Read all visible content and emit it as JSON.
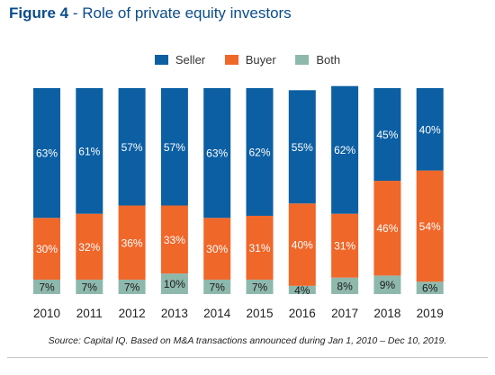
{
  "header": {
    "figure_label": "Figure 4",
    "separator": " - ",
    "title": "Role of private equity investors"
  },
  "colors": {
    "seller": "#0c5fa3",
    "buyer": "#f0672a",
    "both": "#8fb8ac",
    "title": "#0a4d8c"
  },
  "chart_data": {
    "type": "bar",
    "stacked": true,
    "normalized": true,
    "categories": [
      "2010",
      "2011",
      "2012",
      "2013",
      "2014",
      "2015",
      "2016",
      "2017",
      "2018",
      "2019"
    ],
    "series": [
      {
        "name": "Both",
        "values": [
          7,
          7,
          7,
          10,
          7,
          7,
          4,
          8,
          9,
          6
        ]
      },
      {
        "name": "Buyer",
        "values": [
          30,
          32,
          36,
          33,
          30,
          31,
          40,
          31,
          46,
          54
        ]
      },
      {
        "name": "Seller",
        "values": [
          63,
          61,
          57,
          57,
          63,
          62,
          55,
          62,
          45,
          40
        ]
      }
    ],
    "legend_order": [
      "Seller",
      "Buyer",
      "Both"
    ],
    "legend_position": "top-center",
    "ylim": [
      0,
      100
    ],
    "value_suffix": "%",
    "grid": false
  },
  "footer": {
    "source": "Source: Capital IQ. Based on M&A transactions announced during Jan 1, 2010 – Dec 10, 2019."
  }
}
